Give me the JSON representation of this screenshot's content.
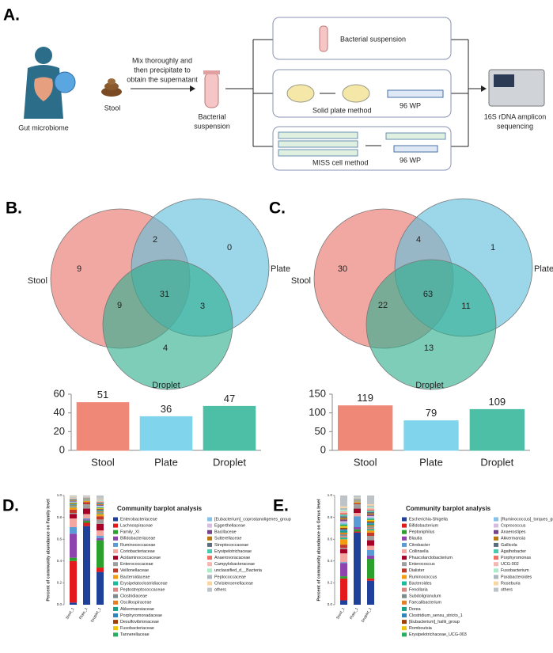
{
  "panel_a": {
    "letter": "A.",
    "gut_label": "Gut microbiome",
    "stool_label": "Stool",
    "mix_lines": [
      "Mix thoroughly and",
      "then precipitate to",
      "obtain the supernatant"
    ],
    "suspension_lines": [
      "Bacterial",
      "suspension"
    ],
    "box1": "Bacterial suspension",
    "box2": "Solid plate method",
    "box2_plate": "96 WP",
    "box3": "MISS cell method",
    "box3_plate": "96 WP",
    "sequencing_lines": [
      "16S rDNA amplicon",
      "sequencing"
    ]
  },
  "chart_data": [
    {
      "type": "venn",
      "panel": "B.",
      "sets": [
        "Stool",
        "Plate",
        "Droplet"
      ],
      "colors": [
        "#e8736a",
        "#5fbfdc",
        "#2fae8e"
      ],
      "counts": {
        "Stool": 9,
        "Plate": 0,
        "Droplet": 4,
        "Stool&Plate": 2,
        "Stool&Droplet": 9,
        "Plate&Droplet": 3,
        "all": 31
      }
    },
    {
      "type": "bar",
      "categories": [
        "Stool",
        "Plate",
        "Droplet"
      ],
      "values": [
        51,
        36,
        47
      ],
      "colors": [
        "#f08878",
        "#80d4eb",
        "#4cbfa6"
      ],
      "ylim": [
        0,
        60
      ],
      "yticks": [
        0,
        20,
        40,
        60
      ]
    },
    {
      "type": "venn",
      "panel": "C.",
      "sets": [
        "Stool",
        "Plate",
        "Droplet"
      ],
      "colors": [
        "#e8736a",
        "#5fbfdc",
        "#2fae8e"
      ],
      "counts": {
        "Stool": 30,
        "Plate": 1,
        "Droplet": 13,
        "Stool&Plate": 4,
        "Stool&Droplet": 22,
        "Plate&Droplet": 11,
        "all": 63
      }
    },
    {
      "type": "bar",
      "categories": [
        "Stool",
        "Plate",
        "Droplet"
      ],
      "values": [
        119,
        79,
        109
      ],
      "colors": [
        "#f08878",
        "#80d4eb",
        "#4cbfa6"
      ],
      "ylim": [
        0,
        150
      ],
      "yticks": [
        0,
        50,
        100,
        150
      ]
    },
    {
      "type": "stacked_bar",
      "panel": "D.",
      "title": "Community barplot analysis",
      "ylabel": "Percent of community abundance on Family level",
      "categories": [
        "Stool_1",
        "Plate_1",
        "Droplet_1"
      ],
      "ylim": [
        0,
        1
      ],
      "yticks": [
        {
          "value": 0,
          "label": "0.0"
        },
        0.2,
        0.4,
        0.6,
        0.8,
        {
          "value": 1,
          "label": "1.0"
        }
      ],
      "series": [
        {
          "name": "Enterobacteriaceae",
          "color": "#20419a",
          "values": [
            0.02,
            0.72,
            0.3
          ]
        },
        {
          "name": "Lachnospiraceae",
          "color": "#e4191c",
          "values": [
            0.38,
            0.03,
            0.04
          ]
        },
        {
          "name": "Family_XI",
          "color": "#2ca02c",
          "values": [
            0.03,
            0.02,
            0.25
          ]
        },
        {
          "name": "Bifidobacteriaceae",
          "color": "#8e44ad",
          "values": [
            0.22,
            0.01,
            0.02
          ]
        },
        {
          "name": "Ruminococcaceae",
          "color": "#5b9bd5",
          "values": [
            0.06,
            0.01,
            0.02
          ]
        },
        {
          "name": "Coriobacteriaceae",
          "color": "#f4a6a0",
          "values": [
            0.08,
            0.04,
            0.05
          ]
        },
        {
          "name": "Acidaminococcaceae",
          "color": "#a50026",
          "values": [
            0.04,
            0.05,
            0.06
          ]
        },
        {
          "name": "Enterococcaceae",
          "color": "#9e9e9e",
          "values": [
            0.01,
            0.04,
            0.04
          ]
        },
        {
          "name": "Veillonellaceae",
          "color": "#c0392b",
          "values": [
            0.03,
            0.02,
            0.03
          ]
        },
        {
          "name": "Bacteroidaceae",
          "color": "#f39c12",
          "values": [
            0.02,
            0.01,
            0.02
          ]
        },
        {
          "name": "Erysipelatoclostridiaceae",
          "color": "#1abc9c",
          "values": [
            0.005,
            0.002,
            0.007
          ]
        },
        {
          "name": "Peptostreptococcaceae",
          "color": "#d98880",
          "values": [
            0.005,
            0.002,
            0.007
          ]
        },
        {
          "name": "Clostridiaceae",
          "color": "#7f8c8d",
          "values": [
            0.005,
            0.002,
            0.007
          ]
        },
        {
          "name": "Oscillospiraceae",
          "color": "#e67e22",
          "values": [
            0.005,
            0.002,
            0.007
          ]
        },
        {
          "name": "Akkermansiaceae",
          "color": "#16a085",
          "values": [
            0.005,
            0.002,
            0.007
          ]
        },
        {
          "name": "Porphyromonadaceae",
          "color": "#2e86c1",
          "values": [
            0.005,
            0.002,
            0.007
          ]
        },
        {
          "name": "Desulfovibrionaceae",
          "color": "#a04000",
          "values": [
            0.005,
            0.002,
            0.007
          ]
        },
        {
          "name": "Fusobacteriaceae",
          "color": "#f1c40f",
          "values": [
            0.005,
            0.002,
            0.007
          ]
        },
        {
          "name": "Tannerellaceae",
          "color": "#27ae60",
          "values": [
            0.005,
            0.002,
            0.007
          ]
        },
        {
          "name": "[Eubacterium]_coprostanoligenes_group",
          "color": "#85c1e9",
          "values": [
            0.005,
            0.002,
            0.007
          ]
        },
        {
          "name": "Eggerthellaceae",
          "color": "#d7bde2",
          "values": [
            0.005,
            0.002,
            0.007
          ]
        },
        {
          "name": "Bacillaceae",
          "color": "#76448a",
          "values": [
            0.005,
            0.002,
            0.007
          ]
        },
        {
          "name": "Sutterellaceae",
          "color": "#b9770e",
          "values": [
            0.005,
            0.002,
            0.007
          ]
        },
        {
          "name": "Streptococcaceae",
          "color": "#5d6d7e",
          "values": [
            0.005,
            0.002,
            0.007
          ]
        },
        {
          "name": "Erysipelotrichaceae",
          "color": "#48c9b0",
          "values": [
            0.005,
            0.002,
            0.007
          ]
        },
        {
          "name": "Anaerovoracaceae",
          "color": "#ec7063",
          "values": [
            0.005,
            0.002,
            0.007
          ]
        },
        {
          "name": "Campylobacteraceae",
          "color": "#f5b7b1",
          "values": [
            0.005,
            0.002,
            0.007
          ]
        },
        {
          "name": "unclassified_d__Bacteria",
          "color": "#abebc6",
          "values": [
            0.005,
            0.002,
            0.007
          ]
        },
        {
          "name": "Peptococcaceae",
          "color": "#aeb6bf",
          "values": [
            0.005,
            0.002,
            0.007
          ]
        },
        {
          "name": "Christensenellaceae",
          "color": "#fad7a0",
          "values": [
            0.005,
            0.002,
            0.007
          ]
        },
        {
          "name": "others",
          "color": "#bdc3c7",
          "values": [
            0.01,
            0.01,
            0.03
          ]
        }
      ]
    },
    {
      "type": "stacked_bar",
      "panel": "E.",
      "title": "Community barplot analysis",
      "ylabel": "Percent of community abundance on Genus level",
      "categories": [
        "Stool_1",
        "Plate_1",
        "Droplet_1"
      ],
      "ylim": [
        0,
        1
      ],
      "yticks": [
        {
          "value": 0,
          "label": "0.0"
        },
        0.2,
        0.4,
        0.6,
        0.8,
        {
          "value": 1,
          "label": "1.0"
        }
      ],
      "series": [
        {
          "name": "Escherichia-Shigella",
          "color": "#20419a",
          "values": [
            0.04,
            0.66,
            0.22
          ]
        },
        {
          "name": "Bifidobacterium",
          "color": "#e4191c",
          "values": [
            0.2,
            0.01,
            0.02
          ]
        },
        {
          "name": "Peptoniphilus",
          "color": "#2ca02c",
          "values": [
            0.02,
            0.02,
            0.18
          ]
        },
        {
          "name": "Blautia",
          "color": "#8e44ad",
          "values": [
            0.12,
            0.02,
            0.03
          ]
        },
        {
          "name": "Citrobacter",
          "color": "#5b9bd5",
          "values": [
            0.01,
            0.1,
            0.05
          ]
        },
        {
          "name": "Collinsella",
          "color": "#f4a6a0",
          "values": [
            0.08,
            0.03,
            0.04
          ]
        },
        {
          "name": "Phascolarctobacterium",
          "color": "#a50026",
          "values": [
            0.04,
            0.04,
            0.05
          ]
        },
        {
          "name": "Enterococcus",
          "color": "#9e9e9e",
          "values": [
            0.01,
            0.04,
            0.04
          ]
        },
        {
          "name": "Dialister",
          "color": "#c0392b",
          "values": [
            0.03,
            0.01,
            0.03
          ]
        },
        {
          "name": "Ruminococcus",
          "color": "#f39c12",
          "values": [
            0.05,
            0.01,
            0.02
          ]
        },
        {
          "name": "Bacteroides",
          "color": "#1abc9c",
          "values": [
            0.015,
            0.002,
            0.012
          ]
        },
        {
          "name": "Fenollaria",
          "color": "#d98880",
          "values": [
            0.015,
            0.002,
            0.012
          ]
        },
        {
          "name": "Subdoligranulum",
          "color": "#7f8c8d",
          "values": [
            0.015,
            0.002,
            0.012
          ]
        },
        {
          "name": "Faecalibacterium",
          "color": "#e67e22",
          "values": [
            0.015,
            0.002,
            0.012
          ]
        },
        {
          "name": "Dorea",
          "color": "#16a085",
          "values": [
            0.015,
            0.002,
            0.012
          ]
        },
        {
          "name": "Clostridium_sensu_stricto_1",
          "color": "#2e86c1",
          "values": [
            0.015,
            0.002,
            0.012
          ]
        },
        {
          "name": "[Eubacterium]_hallii_group",
          "color": "#a04000",
          "values": [
            0.015,
            0.002,
            0.012
          ]
        },
        {
          "name": "Romboutsia",
          "color": "#f1c40f",
          "values": [
            0.015,
            0.002,
            0.012
          ]
        },
        {
          "name": "Erysipelotrichaceae_UCG-003",
          "color": "#27ae60",
          "values": [
            0.015,
            0.002,
            0.012
          ]
        },
        {
          "name": "[Ruminococcus]_torques_group",
          "color": "#85c1e9",
          "values": [
            0.015,
            0.002,
            0.012
          ]
        },
        {
          "name": "Coprococcus",
          "color": "#d7bde2",
          "values": [
            0.015,
            0.002,
            0.012
          ]
        },
        {
          "name": "Anaerostipes",
          "color": "#76448a",
          "values": [
            0.015,
            0.002,
            0.012
          ]
        },
        {
          "name": "Akkermansia",
          "color": "#b9770e",
          "values": [
            0.015,
            0.002,
            0.012
          ]
        },
        {
          "name": "Gallicola",
          "color": "#5d6d7e",
          "values": [
            0.015,
            0.002,
            0.012
          ]
        },
        {
          "name": "Agathobacter",
          "color": "#48c9b0",
          "values": [
            0.015,
            0.002,
            0.012
          ]
        },
        {
          "name": "Porphyromonas",
          "color": "#ec7063",
          "values": [
            0.015,
            0.002,
            0.012
          ]
        },
        {
          "name": "UCG-002",
          "color": "#f5b7b1",
          "values": [
            0.015,
            0.002,
            0.012
          ]
        },
        {
          "name": "Fusobacterium",
          "color": "#abebc6",
          "values": [
            0.015,
            0.002,
            0.012
          ]
        },
        {
          "name": "Parabacteroides",
          "color": "#aeb6bf",
          "values": [
            0.015,
            0.002,
            0.012
          ]
        },
        {
          "name": "Roseburia",
          "color": "#fad7a0",
          "values": [
            0.015,
            0.002,
            0.012
          ]
        },
        {
          "name": "others",
          "color": "#bdc3c7",
          "values": [
            0.1,
            0.02,
            0.08
          ]
        }
      ]
    }
  ]
}
